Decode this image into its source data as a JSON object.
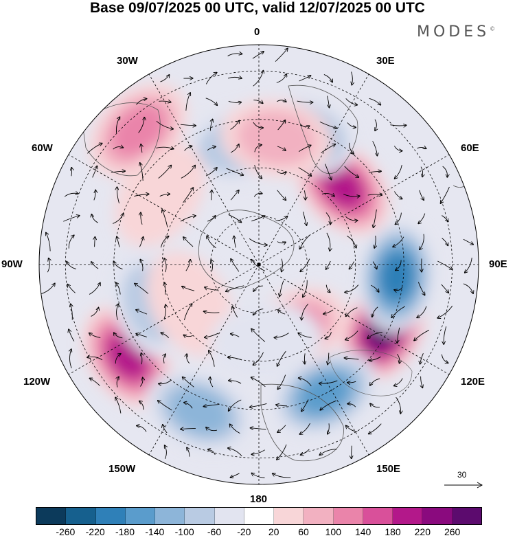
{
  "title": "Base 09/07/2025 00 UTC, valid 12/07/2025 00 UTC",
  "brand": "MODES",
  "brand_mark": "©",
  "longitude_labels": {
    "top": "0",
    "upper_left": "30W",
    "upper_right": "30E",
    "mid_left": "60W",
    "mid_right": "60E",
    "left": "90W",
    "right": "90E",
    "lower_left": "120W",
    "lower_right": "120E",
    "bottom_left": "150W",
    "bottom_right": "150E",
    "bottom": "180"
  },
  "reference_vector": {
    "value": "30",
    "icon": "arrow-right-icon"
  },
  "colorbar": {
    "colors": [
      "#0c3a5b",
      "#16608e",
      "#2f80b8",
      "#5a9ccc",
      "#8db5d9",
      "#b9cbe3",
      "#e2e4f0",
      "#ffffff",
      "#f8d6d8",
      "#f2b1c1",
      "#ea84aa",
      "#d9509a",
      "#b3188a",
      "#8a0a7e",
      "#5c0b6e"
    ],
    "ticks": [
      "-260",
      "-220",
      "-180",
      "-140",
      "-100",
      "-60",
      "-20",
      "20",
      "60",
      "100",
      "140",
      "180",
      "220",
      "260"
    ]
  },
  "anomalies": [
    {
      "lon": 117,
      "r": 0.64,
      "value": 280
    },
    {
      "lon": 47,
      "r": 0.52,
      "value": 220
    },
    {
      "lon": -125,
      "r": 0.73,
      "value": 200
    },
    {
      "lon": 95,
      "r": 0.63,
      "value": -200
    },
    {
      "lon": 153,
      "r": 0.66,
      "value": -160
    },
    {
      "lon": 18,
      "r": 0.62,
      "value": -160
    },
    {
      "lon": -42,
      "r": 0.82,
      "value": 120
    },
    {
      "lon": 152,
      "r": 0.34,
      "value": 120
    },
    {
      "lon": -158,
      "r": 0.72,
      "value": -120
    },
    {
      "lon": -110,
      "r": 0.52,
      "value": -100
    },
    {
      "lon": -10,
      "r": 0.55,
      "value": -80
    },
    {
      "lon": 8,
      "r": 0.58,
      "value": 80
    },
    {
      "lon": -55,
      "r": 0.55,
      "value": 60
    },
    {
      "lon": -120,
      "r": 0.36,
      "value": 70
    },
    {
      "lon": 175,
      "r": 0.35,
      "value": -60
    }
  ]
}
